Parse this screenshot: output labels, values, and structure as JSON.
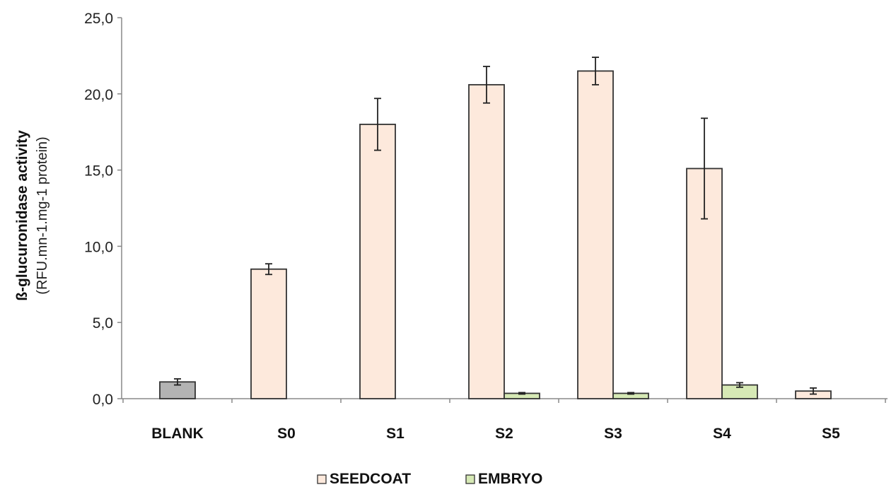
{
  "chart_data": {
    "type": "bar",
    "ylabel_line1": "ß-glucuronidase activity",
    "ylabel_line2": "(RFU.mn-1.mg-1 protein)",
    "ylim": [
      0,
      25
    ],
    "yticks": [
      0,
      5,
      10,
      15,
      20,
      25
    ],
    "ytick_labels": [
      "0,0",
      "5,0",
      "10,0",
      "15,0",
      "20,0",
      "25,0"
    ],
    "categories": [
      "BLANK",
      "S0",
      "S1",
      "S2",
      "S3",
      "S4",
      "S5"
    ],
    "grid": false,
    "legend_position": "bottom",
    "blank": {
      "value": 1.1,
      "error": 0.2,
      "color": "#b3b3b3"
    },
    "series": [
      {
        "name": "SEEDCOAT",
        "color": "#fde9dc",
        "values": [
          null,
          8.5,
          18.0,
          20.6,
          21.5,
          15.1,
          0.5
        ],
        "errors": [
          null,
          0.35,
          1.7,
          1.2,
          0.9,
          3.3,
          0.2
        ]
      },
      {
        "name": "EMBRYO",
        "color": "#d6e9b5",
        "values": [
          null,
          null,
          null,
          0.35,
          0.35,
          0.9,
          null
        ],
        "errors": [
          null,
          null,
          null,
          0.05,
          0.05,
          0.15,
          null
        ]
      }
    ]
  }
}
